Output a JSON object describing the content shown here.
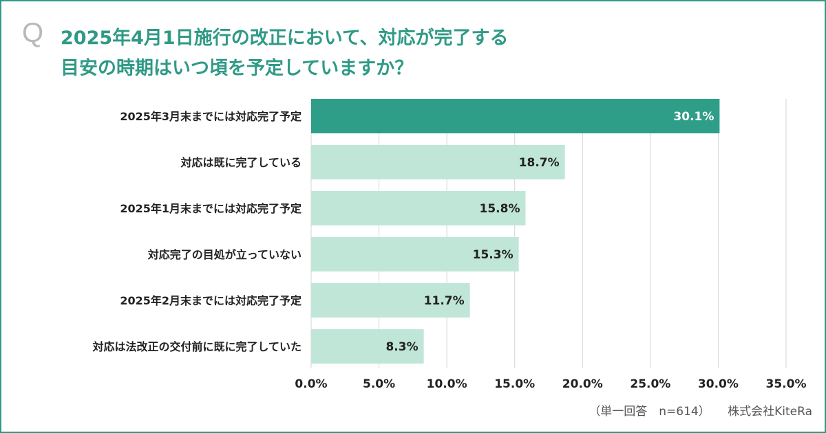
{
  "question": {
    "mark": "Q",
    "line1": "2025年4月1日施行の改正において、対応が完了する",
    "line2": "目安の時期はいつ頃を予定していますか？"
  },
  "chart_data": {
    "type": "bar",
    "orientation": "horizontal",
    "categories": [
      "2025年3月末までには対応完了予定",
      "対応は既に完了している",
      "2025年1月末までには対応完了予定",
      "対応完了の目処が立っていない",
      "2025年2月末までには対応完了予定",
      "対応は法改正の交付前に既に完了していた"
    ],
    "values": [
      30.1,
      18.7,
      15.8,
      15.3,
      11.7,
      8.3
    ],
    "value_labels": [
      "30.1%",
      "18.7%",
      "15.8%",
      "15.3%",
      "11.7%",
      "8.3%"
    ],
    "xlim": [
      0,
      35
    ],
    "x_ticks": [
      0,
      5,
      10,
      15,
      20,
      25,
      30,
      35
    ],
    "x_tick_labels": [
      "0.0%",
      "5.0%",
      "10.0%",
      "15.0%",
      "20.0%",
      "25.0%",
      "30.0%",
      "35.0%"
    ],
    "grid": true,
    "colors": {
      "highlight": "#2f9e89",
      "bar": "#c0e6d8",
      "grid": "#d6d6d6",
      "text": "#222222",
      "highlight_text": "#ffffff"
    }
  },
  "footer": {
    "note": "（単一回答　n=614）",
    "brand": "株式会社KiteRa"
  }
}
